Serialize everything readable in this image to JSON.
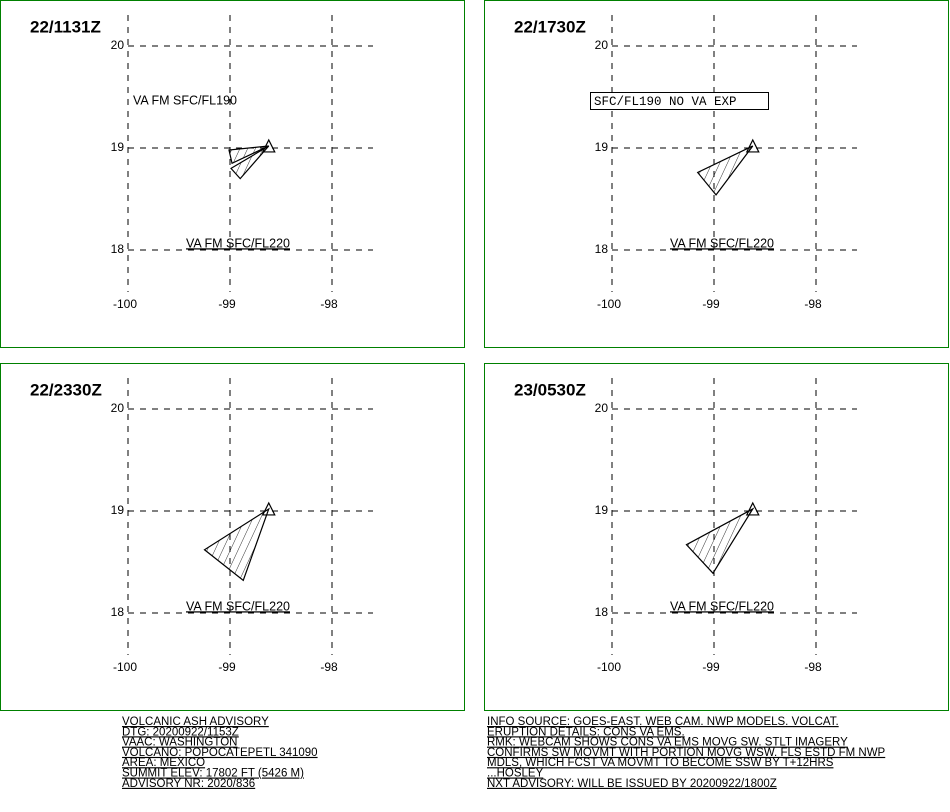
{
  "axes": {
    "lon_ticks": [
      -100,
      -99,
      -98
    ],
    "lat_ticks": [
      18,
      19,
      20
    ]
  },
  "panels": [
    {
      "time": "22/1131Z",
      "top_label": "VA FM SFC/FL190",
      "bottom_label": "VA FM SFC/FL220",
      "ash_polygons": [
        [
          [
            -98.62,
            19.02
          ],
          [
            -99.01,
            18.98
          ],
          [
            -98.98,
            18.85
          ]
        ],
        [
          [
            -98.62,
            19.02
          ],
          [
            -98.99,
            18.8
          ],
          [
            -98.9,
            18.7
          ]
        ]
      ]
    },
    {
      "time": "22/1730Z",
      "top_box": "SFC/FL190 NO VA EXP",
      "bottom_label": "VA FM SFC/FL220",
      "ash_polygons": [
        [
          [
            -98.62,
            19.02
          ],
          [
            -99.16,
            18.76
          ],
          [
            -98.98,
            18.54
          ]
        ]
      ]
    },
    {
      "time": "22/2330Z",
      "bottom_label": "VA FM SFC/FL220",
      "ash_polygons": [
        [
          [
            -98.62,
            19.02
          ],
          [
            -99.25,
            18.62
          ],
          [
            -98.87,
            18.32
          ]
        ]
      ]
    },
    {
      "time": "23/0530Z",
      "bottom_label": "VA FM SFC/FL220",
      "ash_polygons": [
        [
          [
            -98.62,
            19.02
          ],
          [
            -99.27,
            18.67
          ],
          [
            -99.01,
            18.39
          ]
        ]
      ]
    }
  ],
  "footer": {
    "left": [
      "VOLCANIC ASH ADVISORY",
      "DTG: 20200922/1153Z",
      "VAAC: WASHINGTON",
      "VOLCANO: POPOCATEPETL 341090",
      "AREA: MEXICO",
      "SUMMIT ELEV: 17802 FT (5426 M)",
      "ADVISORY NR: 2020/836"
    ],
    "right": [
      "INFO SOURCE: GOES-EAST. WEB CAM. NWP MODELS. VOLCAT.",
      "ERUPTION DETAILS: CONS VA EMS.",
      "RMK: WEBCAM SHOWS CONS VA EMS MOVG SW. STLT IMAGERY",
      "CONFIRMS SW MOVMT WITH PORTION MOVG WSW. FLS ESTD FM NWP",
      "MDLS, WHICH FCST VA MOVMT TO BECOME SSW BY T+12HRS",
      "...HOSLEY",
      "NXT ADVISORY: WILL BE ISSUED BY 20200922/1800Z"
    ]
  }
}
